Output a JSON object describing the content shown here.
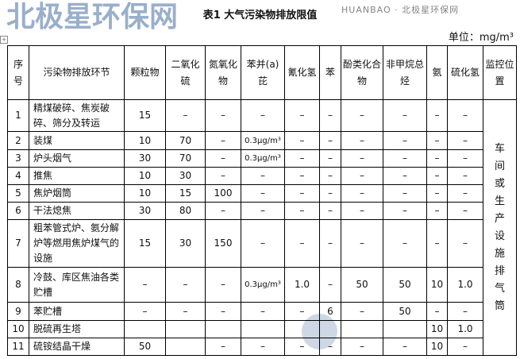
{
  "title": "表1  大气污染物排放限值",
  "unit": "单位：mg/m³",
  "headers": [
    "序号",
    "污染物排放环节",
    "颗粒物",
    "二氧化硫",
    "氮氧化物",
    "苯并(a)芘",
    "氰化氢",
    "苯",
    "酚类化合物",
    "非甲烷总烃",
    "氨",
    "硫化氢",
    "监控位置"
  ],
  "monitor_location": "车间或生产设施排气筒",
  "rows": [
    {
      "no": "1",
      "process": "精煤破碎、焦炭破碎、筛分及转运",
      "values": [
        "15",
        "–",
        "–",
        "–",
        "–",
        "–",
        "–",
        "–",
        "–",
        "–"
      ]
    },
    {
      "no": "2",
      "process": "装煤",
      "values": [
        "10",
        "70",
        "–",
        "0.3μg/m³",
        "–",
        "–",
        "–",
        "–",
        "–",
        "–"
      ]
    },
    {
      "no": "3",
      "process": "炉头烟气",
      "values": [
        "30",
        "70",
        "–",
        "0.3μg/m³",
        "–",
        "–",
        "–",
        "–",
        "–",
        "–"
      ]
    },
    {
      "no": "4",
      "process": "推焦",
      "values": [
        "10",
        "30",
        "–",
        "–",
        "–",
        "–",
        "–",
        "–",
        "–",
        "–"
      ]
    },
    {
      "no": "5",
      "process": "焦炉烟筒",
      "values": [
        "10",
        "15",
        "100",
        "–",
        "–",
        "–",
        "–",
        "–",
        "–",
        "–"
      ]
    },
    {
      "no": "6",
      "process": "干法熄焦",
      "values": [
        "30",
        "80",
        "–",
        "–",
        "–",
        "–",
        "–",
        "–",
        "–",
        "–"
      ]
    },
    {
      "no": "7",
      "process": "粗苯管式炉、氨分解炉等燃用焦炉煤气的设施",
      "values": [
        "15",
        "30",
        "150",
        "–",
        "–",
        "–",
        "–",
        "–",
        "–",
        "–"
      ]
    },
    {
      "no": "8",
      "process": "冷鼓、库区焦油各类贮槽",
      "values": [
        "–",
        "–",
        "–",
        "0.3μg/m³",
        "1.0",
        "–",
        "50",
        "50",
        "10",
        "1.0"
      ]
    },
    {
      "no": "9",
      "process": "苯贮槽",
      "values": [
        "–",
        "–",
        "–",
        "–",
        "–",
        "6",
        "–",
        "50",
        "–",
        "–"
      ]
    },
    {
      "no": "10",
      "process": "脱硫再生塔",
      "values": [
        "",
        "",
        "",
        "",
        "",
        "",
        "",
        "",
        "10",
        "1.0"
      ]
    },
    {
      "no": "11",
      "process": "硫铵结晶干燥",
      "values": [
        "50",
        "",
        "–",
        "–",
        "–",
        "–",
        "–",
        "–",
        "10",
        "–"
      ]
    }
  ],
  "watermark": {
    "main": "北极星环保网",
    "sub": "HUANBAO · 北极星环保网"
  }
}
